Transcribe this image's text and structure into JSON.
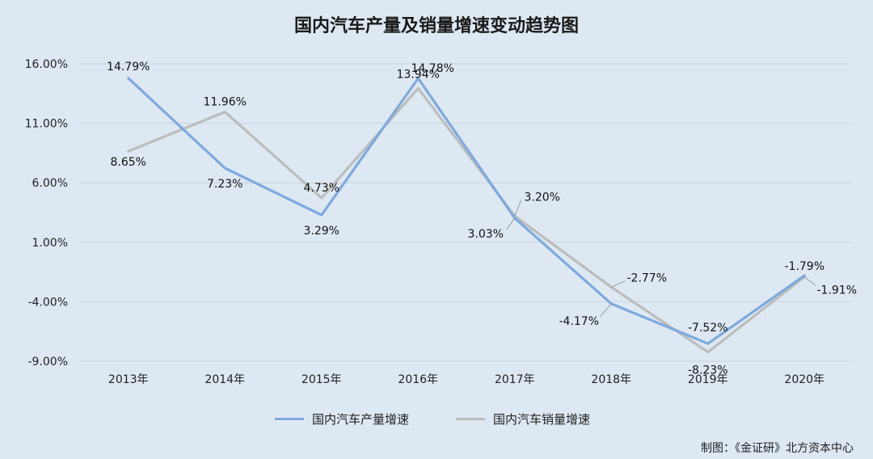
{
  "chart_data": {
    "type": "line",
    "title": "国内汽车产量及销量增速变动趋势图",
    "categories": [
      "2013年",
      "2014年",
      "2015年",
      "2016年",
      "2017年",
      "2018年",
      "2019年",
      "2020年"
    ],
    "yticks": [
      "16.00%",
      "11.00%",
      "6.00%",
      "1.00%",
      "-4.00%",
      "-9.00%"
    ],
    "ylim": [
      -9,
      16
    ],
    "grid": true,
    "legend_position": "bottom",
    "series": [
      {
        "name": "国内汽车产量增速",
        "color": "#7ea9dd",
        "values": [
          14.79,
          7.23,
          3.29,
          14.78,
          3.03,
          -4.17,
          -7.52,
          -1.79
        ],
        "labels": [
          "14.79%",
          "7.23%",
          "3.29%",
          "14.78%",
          "3.03%",
          "-4.17%",
          "-7.52%",
          "-1.79%"
        ]
      },
      {
        "name": "国内汽车销量增速",
        "color": "#bdbdbd",
        "values": [
          8.65,
          11.96,
          4.73,
          13.94,
          3.2,
          -2.77,
          -8.23,
          -1.91
        ],
        "labels": [
          "8.65%",
          "11.96%",
          "4.73%",
          "13.94%",
          "3.20%",
          "-2.77%",
          "-8.23%",
          "-1.91%"
        ]
      }
    ]
  },
  "source": "制图：《金证研》北方资本中心"
}
